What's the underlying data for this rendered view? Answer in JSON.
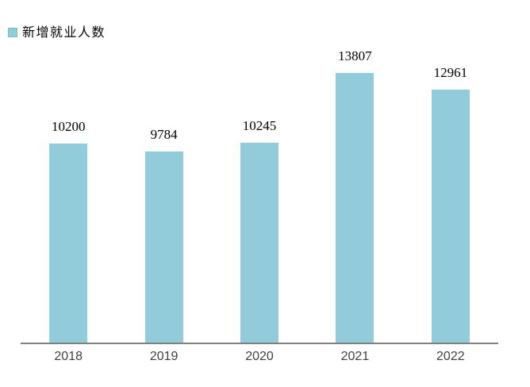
{
  "chart_data": {
    "type": "bar",
    "title": "",
    "legend": "新增就业人数",
    "legend_position": "top-left",
    "categories": [
      "2018",
      "2019",
      "2020",
      "2021",
      "2022"
    ],
    "series": [
      {
        "name": "新增就业人数",
        "values": [
          10200,
          9784,
          10245,
          13807,
          12961
        ]
      }
    ],
    "values": [
      10200,
      9784,
      10245,
      13807,
      12961
    ],
    "data_labels": [
      "10200",
      "9784",
      "10245",
      "13807",
      "12961"
    ],
    "xlabel": "",
    "ylabel": "",
    "grid": false,
    "y_axis_visible": false,
    "colors": {
      "bar": "#92CBDA",
      "axis_line": "#808080",
      "data_label": "#000000",
      "tick_label": "#404040",
      "background": "#ffffff"
    }
  }
}
